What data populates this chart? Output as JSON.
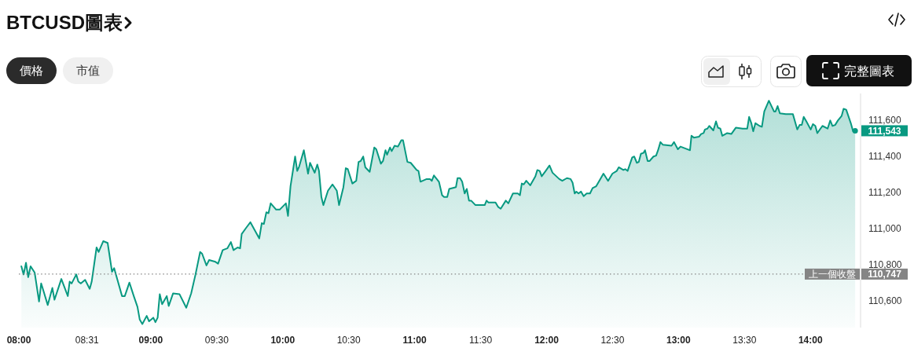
{
  "chart_data": {
    "type": "area",
    "title": "BTCUSD圖表",
    "color": "#089981",
    "line_style": "solid",
    "x": [
      8.019,
      8.036,
      8.054,
      8.071,
      8.089,
      8.12,
      8.153,
      8.169,
      8.182,
      8.219,
      8.254,
      8.27,
      8.322,
      8.371,
      8.385,
      8.4,
      8.435,
      8.451,
      8.47,
      8.502,
      8.537,
      8.552,
      8.589,
      8.605,
      8.64,
      8.673,
      8.706,
      8.722,
      8.782,
      8.803,
      8.838,
      8.871,
      8.899,
      8.916,
      8.936,
      8.969,
      8.987,
      9.019,
      9.035,
      9.052,
      9.068,
      9.086,
      9.121,
      9.136,
      9.169,
      9.218,
      9.269,
      9.306,
      9.339,
      9.374,
      9.389,
      9.422,
      9.442,
      9.49,
      9.51,
      9.545,
      9.58,
      9.607,
      9.627,
      9.658,
      9.677,
      9.689,
      9.724,
      9.755,
      9.822,
      9.841,
      9.857,
      9.876,
      9.892,
      9.909,
      9.95,
      9.977,
      10.024,
      10.04,
      10.059,
      10.094,
      10.11,
      10.125,
      10.16,
      10.192,
      10.207,
      10.242,
      10.262,
      10.275,
      10.293,
      10.308,
      10.343,
      10.377,
      10.41,
      10.427,
      10.46,
      10.478,
      10.493,
      10.528,
      10.557,
      10.575,
      10.591,
      10.61,
      10.626,
      10.659,
      10.694,
      10.709,
      10.744,
      10.76,
      10.779,
      10.791,
      10.813,
      10.826,
      10.848,
      10.873,
      10.899,
      10.912,
      10.945,
      10.97,
      11.015,
      11.029,
      11.044,
      11.091,
      11.116,
      11.13,
      11.146,
      11.184,
      11.208,
      11.223,
      11.247,
      11.262,
      11.313,
      11.325,
      11.344,
      11.36,
      11.379,
      11.395,
      11.412,
      11.428,
      11.461,
      11.531,
      11.545,
      11.559,
      11.613,
      11.633,
      11.652,
      11.691,
      11.71,
      11.745,
      11.782,
      11.798,
      11.812,
      11.827,
      11.846,
      11.876,
      11.915,
      11.93,
      11.948,
      11.963,
      11.993,
      12.022,
      12.045,
      12.096,
      12.119,
      12.154,
      12.182,
      12.197,
      12.213,
      12.226,
      12.242,
      12.261,
      12.281,
      12.304,
      12.329,
      12.349,
      12.376,
      12.431,
      12.466,
      12.499,
      12.532,
      12.547,
      12.582,
      12.596,
      12.614,
      12.649,
      12.664,
      12.684,
      12.699,
      12.715,
      12.734,
      12.746,
      12.766,
      12.781,
      12.81,
      12.83,
      12.845,
      12.863,
      12.882,
      12.947,
      12.966,
      12.995,
      13.015,
      13.069,
      13.087,
      13.098,
      13.116,
      13.155,
      13.171,
      13.19,
      13.2,
      13.219,
      13.233,
      13.264,
      13.284,
      13.299,
      13.317,
      13.332,
      13.369,
      13.4,
      13.434,
      13.486,
      13.521,
      13.535,
      13.552,
      13.566,
      13.583,
      13.614,
      13.632,
      13.65,
      13.685,
      13.724,
      13.735,
      13.751,
      13.768,
      13.813,
      13.867,
      13.9,
      13.918,
      13.934,
      13.949,
      13.969,
      14.002,
      14.019,
      14.037,
      14.052,
      14.091,
      14.13,
      14.15,
      14.167,
      14.187,
      14.208,
      14.236,
      14.251,
      14.271,
      14.306,
      14.323,
      14.339
    ],
    "values": [
      110790,
      110745,
      110810,
      110730,
      110790,
      110755,
      110595,
      110695,
      110665,
      110575,
      110670,
      110605,
      110720,
      110625,
      110705,
      110695,
      110745,
      110705,
      110695,
      110715,
      110665,
      110705,
      110895,
      110870,
      110930,
      110920,
      110760,
      110780,
      110625,
      110625,
      110700,
      110625,
      110565,
      110495,
      110470,
      110515,
      110485,
      110505,
      110480,
      110505,
      110635,
      110580,
      110625,
      110570,
      110640,
      110635,
      110560,
      110640,
      110745,
      110870,
      110860,
      110795,
      110825,
      110815,
      110805,
      110880,
      110890,
      110925,
      110880,
      110895,
      110890,
      110970,
      111005,
      111035,
      110945,
      111030,
      111025,
      111090,
      111085,
      111140,
      111105,
      111105,
      111140,
      111070,
      111235,
      111400,
      111320,
      111345,
      111435,
      111305,
      111365,
      111310,
      111355,
      111320,
      111175,
      111130,
      111210,
      111245,
      111210,
      111130,
      111230,
      111335,
      111330,
      111250,
      111265,
      111370,
      111375,
      111400,
      111340,
      111315,
      111450,
      111440,
      111360,
      111375,
      111435,
      111410,
      111450,
      111430,
      111460,
      111455,
      111490,
      111490,
      111370,
      111365,
      111325,
      111320,
      111260,
      111275,
      111275,
      111265,
      111295,
      111260,
      111185,
      111175,
      111175,
      111220,
      111230,
      111280,
      111280,
      111260,
      111195,
      111220,
      111155,
      111155,
      111130,
      111130,
      111155,
      111145,
      111145,
      111120,
      111110,
      111155,
      111140,
      111195,
      111195,
      111185,
      111250,
      111245,
      111265,
      111240,
      111290,
      111325,
      111320,
      111290,
      111320,
      111350,
      111310,
      111275,
      111265,
      111280,
      111275,
      111255,
      111195,
      111205,
      111195,
      111205,
      111180,
      111195,
      111195,
      111225,
      111235,
      111305,
      111265,
      111305,
      111320,
      111340,
      111325,
      111330,
      111320,
      111395,
      111400,
      111365,
      111370,
      111415,
      111420,
      111435,
      111375,
      111375,
      111400,
      111405,
      111435,
      111480,
      111465,
      111460,
      111480,
      111440,
      111455,
      111440,
      111435,
      111515,
      111505,
      111510,
      111525,
      111530,
      111550,
      111555,
      111570,
      111545,
      111595,
      111560,
      111555,
      111515,
      111530,
      111525,
      111560,
      111555,
      111555,
      111620,
      111585,
      111540,
      111585,
      111570,
      111565,
      111650,
      111710,
      111650,
      111650,
      111680,
      111640,
      111635,
      111635,
      111550,
      111575,
      111575,
      111620,
      111595,
      111550,
      111580,
      111570,
      111530,
      111570,
      111555,
      111600,
      111570,
      111575,
      111600,
      111625,
      111665,
      111660,
      111585,
      111540,
      111543
    ],
    "xlim": [
      8,
      14.35
    ],
    "xticks": [
      {
        "value": 8,
        "label": "08:00"
      },
      {
        "value": 8.5167,
        "label": "08:31"
      },
      {
        "value": 9,
        "label": "09:00"
      },
      {
        "value": 9.5,
        "label": "09:30"
      },
      {
        "value": 10,
        "label": "10:00"
      },
      {
        "value": 10.5,
        "label": "10:30"
      },
      {
        "value": 11,
        "label": "11:00"
      },
      {
        "value": 11.5,
        "label": "11:30"
      },
      {
        "value": 12,
        "label": "12:00"
      },
      {
        "value": 12.5,
        "label": "12:30"
      },
      {
        "value": 13,
        "label": "13:00"
      },
      {
        "value": 13.5,
        "label": "13:30"
      },
      {
        "value": 14,
        "label": "14:00"
      }
    ],
    "ylim": [
      110450,
      111750
    ],
    "yticks": [
      {
        "value": 110600,
        "label": "110,600"
      },
      {
        "value": 110747,
        "label": "110,747"
      },
      {
        "value": 110800,
        "label": "110,800"
      },
      {
        "value": 111000,
        "label": "111,000"
      },
      {
        "value": 111200,
        "label": "111,200"
      },
      {
        "value": 111400,
        "label": "111,400"
      },
      {
        "value": 111600,
        "label": "111,600"
      }
    ],
    "ref_lines": [
      {
        "axis": "y",
        "value": 110747,
        "label": "上一個收盤",
        "color": "#858585",
        "line_style": "dotted"
      }
    ],
    "annotations": [
      "價格",
      "市值",
      "完整圖表",
      {
        "text": "111,543",
        "x": 14.339,
        "y": 111543
      }
    ]
  }
}
